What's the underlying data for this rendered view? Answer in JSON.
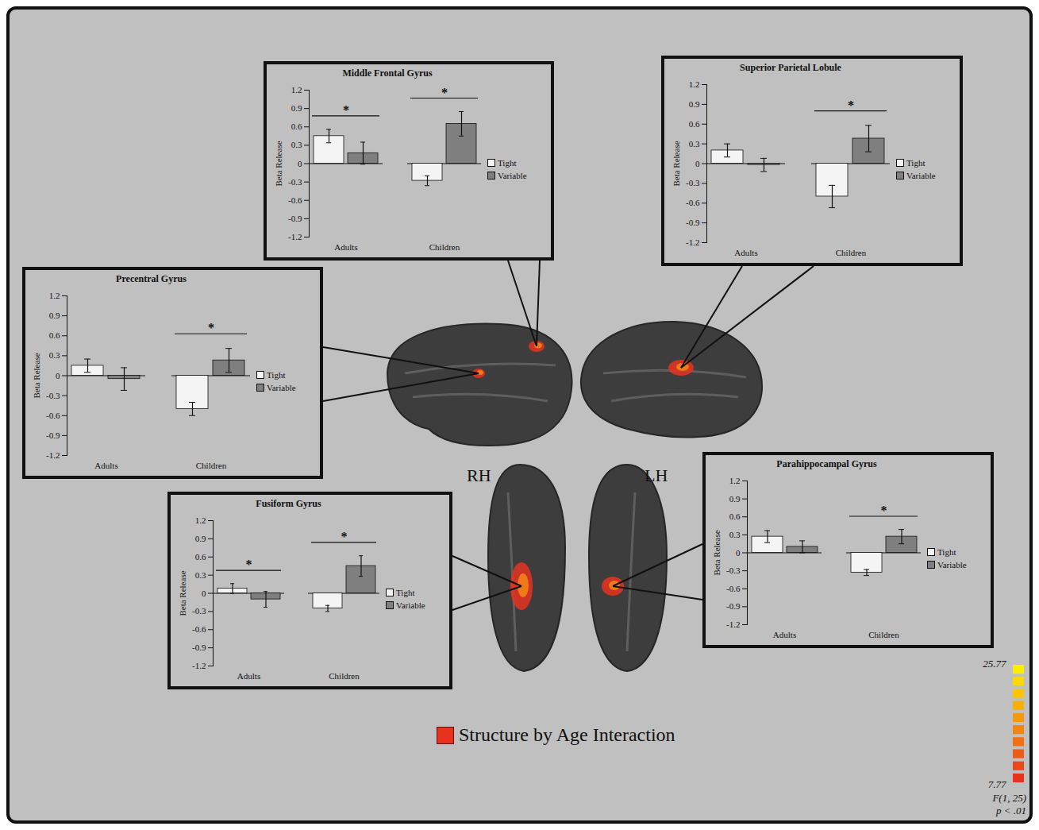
{
  "chart_data": [
    {
      "type": "bar",
      "title": "Middle Frontal Gyrus",
      "y_label": "Beta Release",
      "categories": [
        "Adults",
        "Children"
      ],
      "series": [
        {
          "name": "Tight",
          "color": "#f4f4f4",
          "values": [
            0.45,
            -0.28
          ],
          "errors": [
            0.11,
            0.08
          ]
        },
        {
          "name": "Variable",
          "color": "#7f7f7f",
          "values": [
            0.17,
            0.65
          ],
          "errors": [
            0.18,
            0.2
          ]
        }
      ],
      "ylim": [
        -1.2,
        1.2
      ],
      "yticks": [
        -1.2,
        -0.9,
        -0.6,
        -0.3,
        0,
        0.3,
        0.6,
        0.9,
        1.2
      ],
      "legend": "right",
      "annotations": [
        {
          "category": "Adults",
          "text": "*"
        },
        {
          "category": "Children",
          "text": "*"
        }
      ]
    },
    {
      "type": "bar",
      "title": "Superior Parietal Lobule",
      "y_label": "Beta Release",
      "categories": [
        "Adults",
        "Children"
      ],
      "series": [
        {
          "name": "Tight",
          "color": "#f4f4f4",
          "values": [
            0.2,
            -0.5
          ],
          "errors": [
            0.1,
            0.17
          ]
        },
        {
          "name": "Variable",
          "color": "#7f7f7f",
          "values": [
            -0.02,
            0.38
          ],
          "errors": [
            0.1,
            0.2
          ]
        }
      ],
      "ylim": [
        -1.2,
        1.2
      ],
      "yticks": [
        -1.2,
        -0.9,
        -0.6,
        -0.3,
        0,
        0.3,
        0.6,
        0.9,
        1.2
      ],
      "legend": "right",
      "annotations": [
        {
          "category": "Children",
          "text": "*"
        }
      ]
    },
    {
      "type": "bar",
      "title": "Precentral Gyrus",
      "y_label": "Beta Release",
      "categories": [
        "Adults",
        "Children"
      ],
      "series": [
        {
          "name": "Tight",
          "color": "#f4f4f4",
          "values": [
            0.15,
            -0.5
          ],
          "errors": [
            0.1,
            0.1
          ]
        },
        {
          "name": "Variable",
          "color": "#7f7f7f",
          "values": [
            -0.05,
            0.23
          ],
          "errors": [
            0.17,
            0.18
          ]
        }
      ],
      "ylim": [
        -1.2,
        1.2
      ],
      "yticks": [
        -1.2,
        -0.9,
        -0.6,
        -0.3,
        0,
        0.3,
        0.6,
        0.9,
        1.2
      ],
      "legend": "right",
      "annotations": [
        {
          "category": "Children",
          "text": "*"
        }
      ]
    },
    {
      "type": "bar",
      "title": "Fusiform Gyrus",
      "y_label": "Beta Release",
      "categories": [
        "Adults",
        "Children"
      ],
      "series": [
        {
          "name": "Tight",
          "color": "#f4f4f4",
          "values": [
            0.08,
            -0.25
          ],
          "errors": [
            0.08,
            0.05
          ]
        },
        {
          "name": "Variable",
          "color": "#7f7f7f",
          "values": [
            -0.1,
            0.45
          ],
          "errors": [
            0.13,
            0.17
          ]
        }
      ],
      "ylim": [
        -1.2,
        1.2
      ],
      "yticks": [
        -1.2,
        -0.9,
        -0.6,
        -0.3,
        0,
        0.3,
        0.6,
        0.9,
        1.2
      ],
      "legend": "right",
      "annotations": [
        {
          "category": "Adults",
          "text": "*"
        },
        {
          "category": "Children",
          "text": "*"
        }
      ]
    },
    {
      "type": "bar",
      "title": "Parahippocampal Gyrus",
      "y_label": "Beta Release",
      "categories": [
        "Adults",
        "Children"
      ],
      "series": [
        {
          "name": "Tight",
          "color": "#f4f4f4",
          "values": [
            0.27,
            -0.33
          ],
          "errors": [
            0.1,
            0.05
          ]
        },
        {
          "name": "Variable",
          "color": "#7f7f7f",
          "values": [
            0.1,
            0.27
          ],
          "errors": [
            0.1,
            0.12
          ]
        }
      ],
      "ylim": [
        -1.2,
        1.2
      ],
      "yticks": [
        -1.2,
        -0.9,
        -0.6,
        -0.3,
        0,
        0.3,
        0.6,
        0.9,
        1.2
      ],
      "legend": "right",
      "annotations": [
        {
          "category": "Children",
          "text": "*"
        }
      ]
    }
  ],
  "figure": {
    "hemisphere_labels": [
      "RH",
      "LH"
    ],
    "key": {
      "label": "Structure by Age Interaction",
      "color": "#e8321e"
    },
    "colorbar": {
      "range": [
        7.77,
        25.77
      ],
      "ticks": [
        7.77,
        25.77
      ],
      "colors": [
        "#e8321e",
        "#ffee00"
      ],
      "label": "F(1, 25)",
      "threshold": "p < .01"
    }
  }
}
